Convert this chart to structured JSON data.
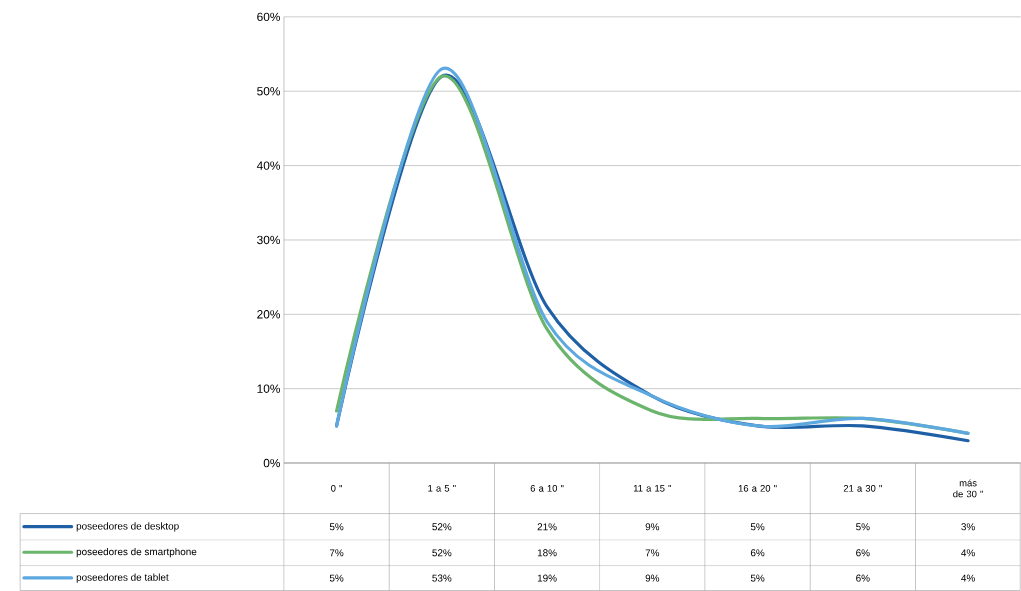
{
  "chart_data": {
    "type": "line",
    "categories": [
      "0 \"",
      "1 a 5 \"",
      "6 a 10 \"",
      "11 a 15 \"",
      "16 a 20 \"",
      "21 a 30 \"",
      "más de 30 \""
    ],
    "ylim": [
      0,
      60
    ],
    "yticks": [
      {
        "value": 0,
        "label": "0%"
      },
      {
        "value": 10,
        "label": "10%"
      },
      {
        "value": 20,
        "label": "20%"
      },
      {
        "value": 30,
        "label": "30%"
      },
      {
        "value": 40,
        "label": "40%"
      },
      {
        "value": 50,
        "label": "50%"
      },
      {
        "value": 60,
        "label": "60%"
      }
    ],
    "grid": "y",
    "legend": "bottom",
    "series": [
      {
        "name": "poseedores de desktop",
        "color": "#1f5fa6",
        "values": [
          5,
          52,
          21,
          9,
          5,
          5,
          3
        ],
        "value_labels": [
          "5%",
          "52%",
          "21%",
          "9%",
          "5%",
          "5%",
          "3%"
        ]
      },
      {
        "name": "poseedores de smartphone",
        "color": "#6ab46c",
        "values": [
          7,
          52,
          18,
          7,
          6,
          6,
          4
        ],
        "value_labels": [
          "7%",
          "52%",
          "18%",
          "7%",
          "6%",
          "6%",
          "4%"
        ]
      },
      {
        "name": "poseedores de tablet",
        "color": "#5ea8e0",
        "values": [
          5,
          53,
          19,
          9,
          5,
          6,
          4
        ],
        "value_labels": [
          "5%",
          "53%",
          "19%",
          "9%",
          "5%",
          "6%",
          "4%"
        ]
      }
    ]
  }
}
